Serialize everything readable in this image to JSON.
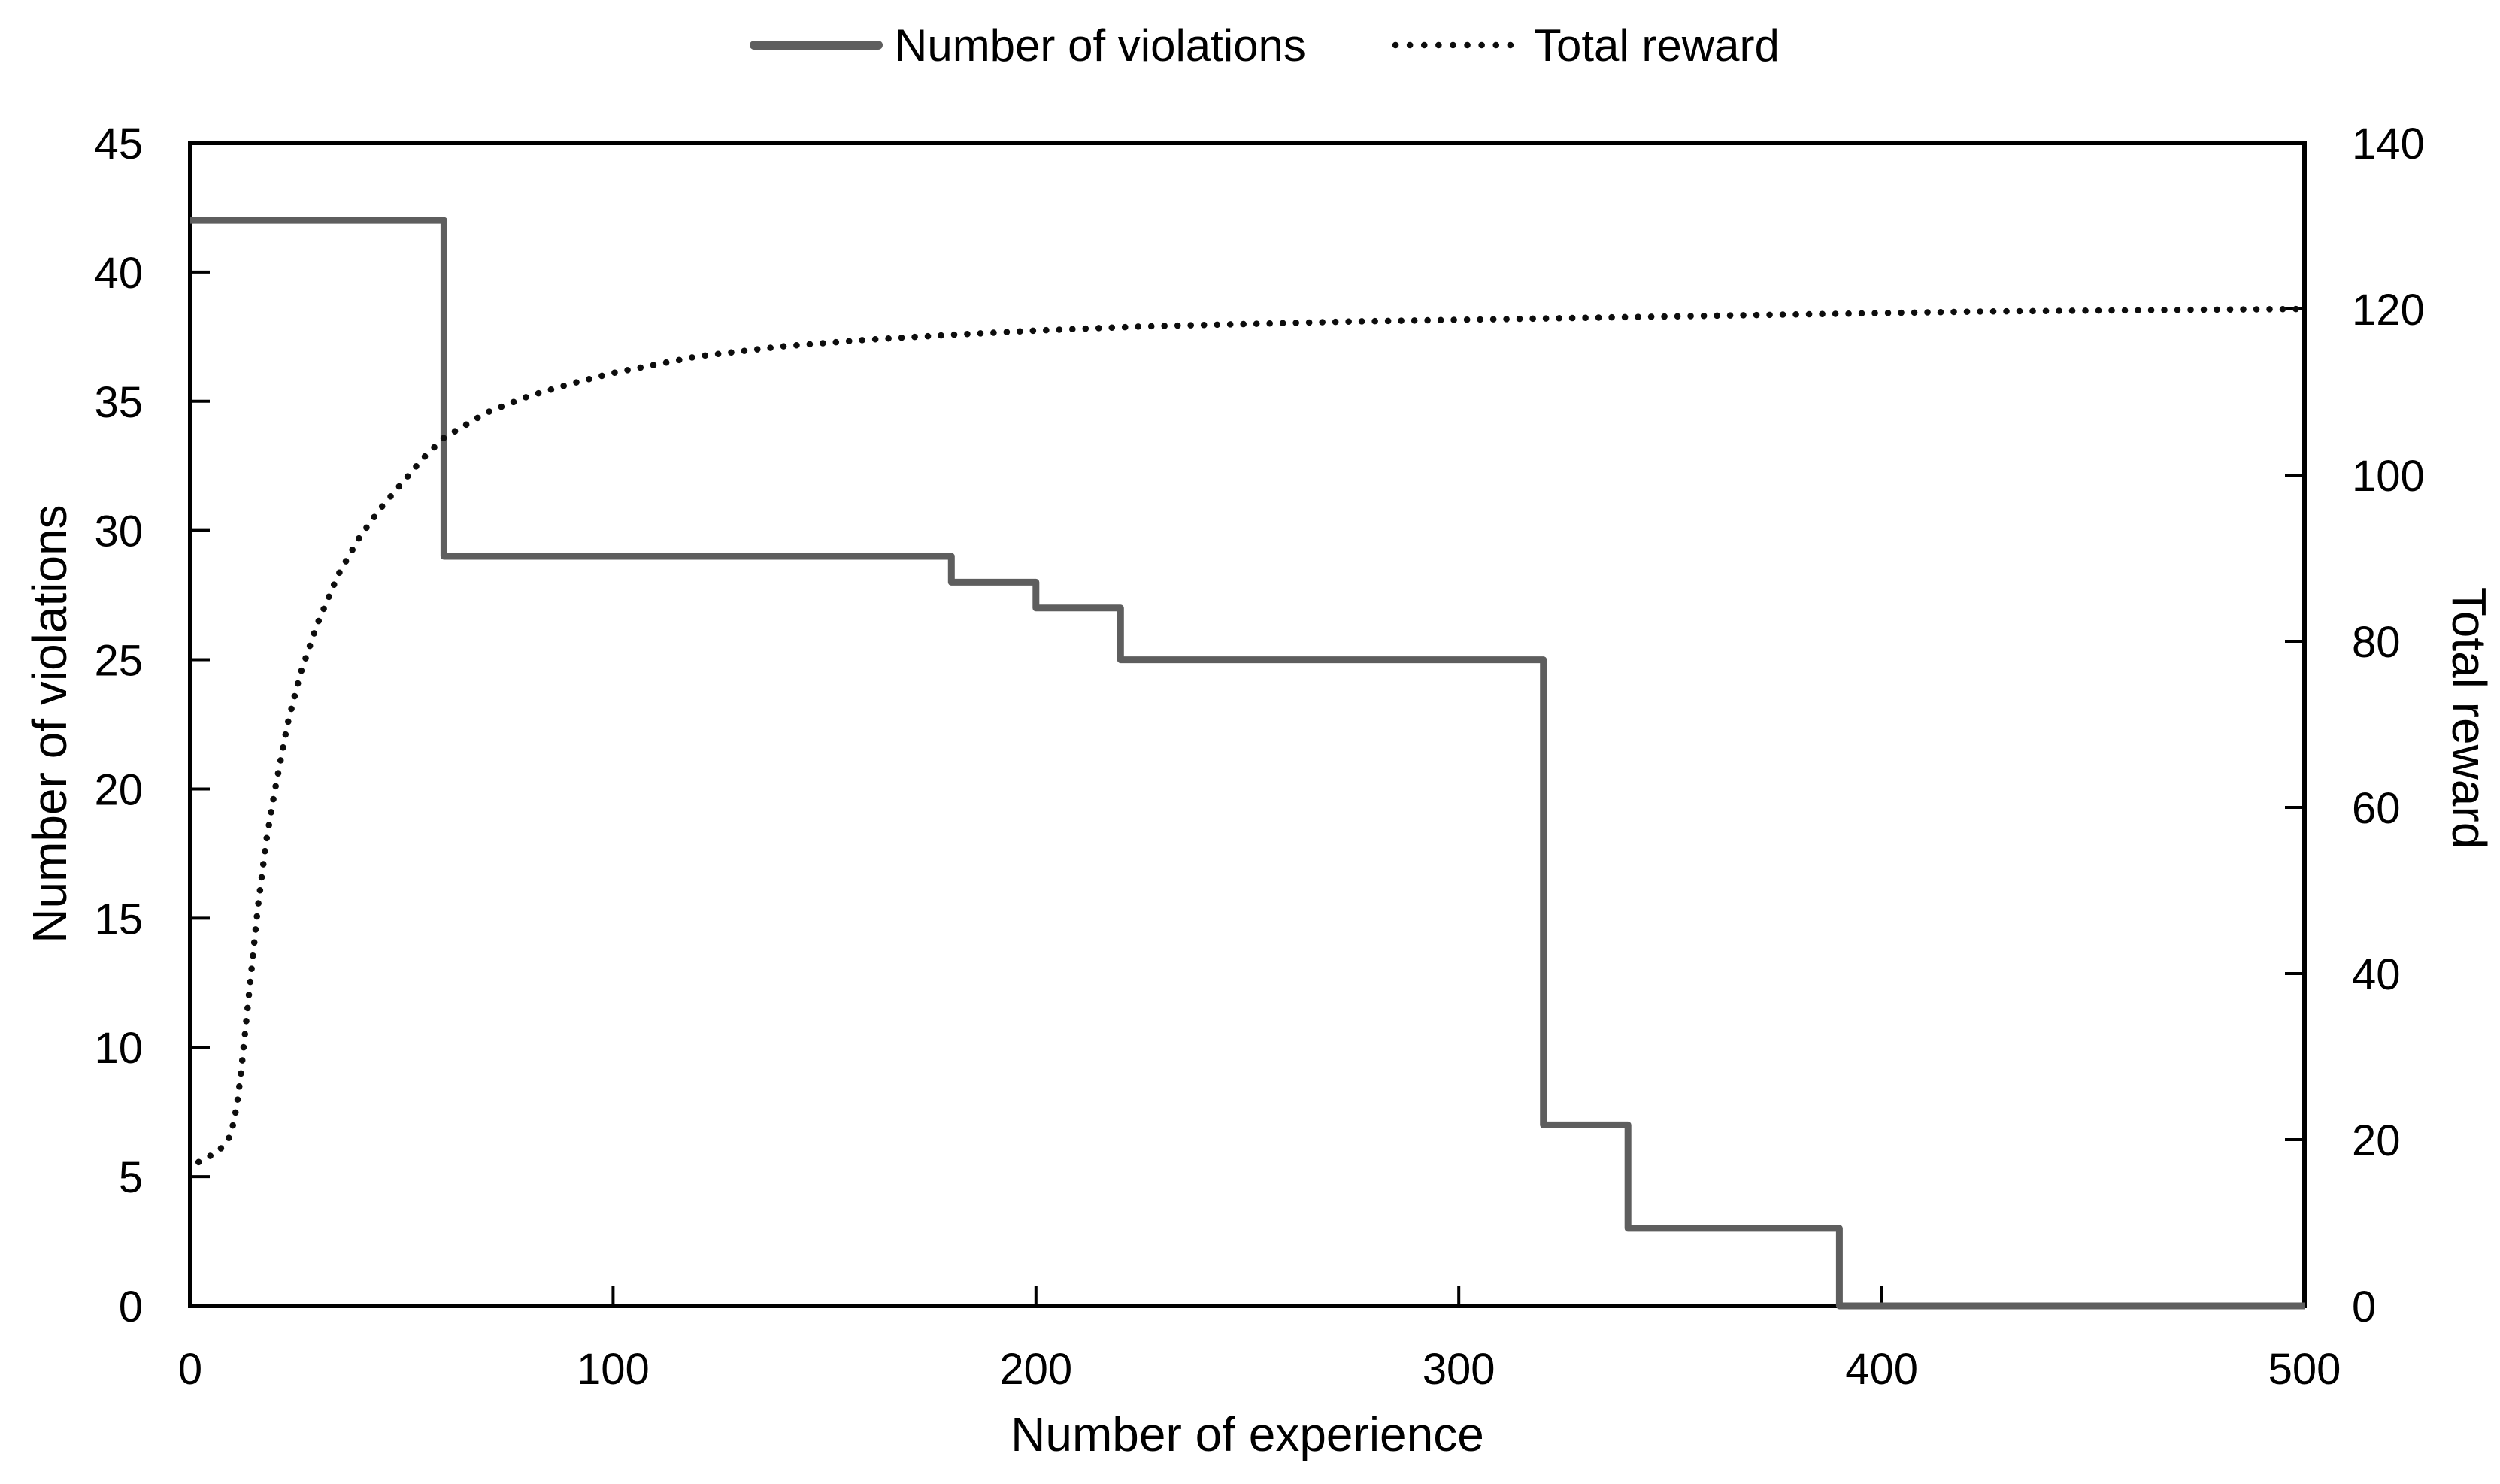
{
  "legend": {
    "items": [
      {
        "label": "Number of violations",
        "line_style": "solid",
        "color": "#5e5e5e"
      },
      {
        "label": "Total reward",
        "line_style": "dotted",
        "color": "#0d0d0d"
      }
    ]
  },
  "chart_data": {
    "type": "line",
    "title": "",
    "grid": false,
    "legend_position": "top-center",
    "x_axis": {
      "label": "Number of experience",
      "min": 0,
      "max": 500,
      "ticks": [
        0,
        100,
        200,
        300,
        400,
        500
      ]
    },
    "y_left": {
      "label": "Number of violations",
      "min": 0,
      "max": 45,
      "ticks": [
        0,
        5,
        10,
        15,
        20,
        25,
        30,
        35,
        40,
        45
      ]
    },
    "y_right": {
      "label": "Total reward",
      "min": 0,
      "max": 140,
      "ticks": [
        0,
        20,
        40,
        60,
        80,
        100,
        120,
        140
      ]
    },
    "series": [
      {
        "name": "Number of violations",
        "axis": "left",
        "style": "solid-step",
        "color": "#5e5e5e",
        "points": [
          [
            0,
            42
          ],
          [
            60,
            42
          ],
          [
            60,
            29
          ],
          [
            180,
            29
          ],
          [
            180,
            28
          ],
          [
            200,
            28
          ],
          [
            200,
            27
          ],
          [
            220,
            27
          ],
          [
            220,
            25
          ],
          [
            320,
            25
          ],
          [
            320,
            7
          ],
          [
            340,
            7
          ],
          [
            340,
            3
          ],
          [
            390,
            3
          ],
          [
            390,
            0
          ],
          [
            500,
            0
          ]
        ]
      },
      {
        "name": "Total reward",
        "axis": "right",
        "style": "dotted",
        "color": "#0d0d0d",
        "points": [
          [
            2,
            17.3
          ],
          [
            4,
            17.8
          ],
          [
            7,
            18.8
          ],
          [
            9,
            20
          ],
          [
            10,
            21.5
          ],
          [
            11,
            24
          ],
          [
            12,
            28
          ],
          [
            13,
            33
          ],
          [
            14,
            38
          ],
          [
            15,
            43
          ],
          [
            16,
            48
          ],
          [
            18,
            56
          ],
          [
            20,
            62
          ],
          [
            23,
            70
          ],
          [
            26,
            76
          ],
          [
            30,
            82
          ],
          [
            35,
            88
          ],
          [
            40,
            92.5
          ],
          [
            45,
            96
          ],
          [
            50,
            99
          ],
          [
            55,
            102
          ],
          [
            60,
            104.5
          ],
          [
            70,
            107.5
          ],
          [
            80,
            109.5
          ],
          [
            90,
            111
          ],
          [
            100,
            112.3
          ],
          [
            120,
            114.3
          ],
          [
            140,
            115.5
          ],
          [
            160,
            116.3
          ],
          [
            180,
            116.9
          ],
          [
            200,
            117.4
          ],
          [
            225,
            117.9
          ],
          [
            250,
            118.2
          ],
          [
            275,
            118.5
          ],
          [
            300,
            118.7
          ],
          [
            325,
            118.9
          ],
          [
            350,
            119.1
          ],
          [
            375,
            119.3
          ],
          [
            400,
            119.5
          ],
          [
            425,
            119.7
          ],
          [
            450,
            119.8
          ],
          [
            475,
            119.9
          ],
          [
            500,
            120
          ]
        ]
      }
    ]
  }
}
